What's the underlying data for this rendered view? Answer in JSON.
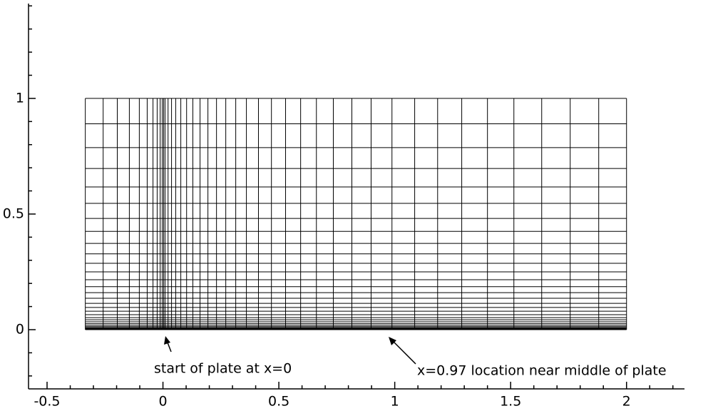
{
  "chart_data": {
    "type": "mesh",
    "xlim": [
      -0.58,
      2.25
    ],
    "ylim": [
      -0.256,
      1.41
    ],
    "xticks": [
      -0.5,
      0,
      0.5,
      1,
      1.5,
      2
    ],
    "yticks": [
      0,
      0.5,
      1
    ],
    "xminorticks": [
      -0.4,
      -0.3,
      -0.2,
      -0.1,
      0.1,
      0.2,
      0.3,
      0.4,
      0.6,
      0.7,
      0.8,
      0.9,
      1.1,
      1.2,
      1.3,
      1.4,
      1.6,
      1.7,
      1.8,
      1.9,
      2.1,
      2.2
    ],
    "yminorticks": [
      -0.2,
      -0.1,
      0.1,
      0.2,
      0.3,
      0.4,
      0.6,
      0.7,
      0.8,
      0.9,
      1.1,
      1.2,
      1.3,
      1.4
    ],
    "mesh_x": [
      -0.335,
      -0.258,
      -0.197,
      -0.145,
      -0.102,
      -0.068,
      -0.043,
      -0.025,
      -0.012,
      -0.003,
      0.003,
      0.009,
      0.022,
      0.037,
      0.055,
      0.077,
      0.102,
      0.129,
      0.16,
      0.194,
      0.231,
      0.271,
      0.314,
      0.36,
      0.412,
      0.468,
      0.529,
      0.594,
      0.662,
      0.735,
      0.815,
      0.898,
      0.988,
      1.086,
      1.185,
      1.289,
      1.4,
      1.514,
      1.634,
      1.757,
      1.88,
      2.0
    ],
    "mesh_y": [
      0,
      0.003,
      0.006,
      0.009,
      0.013,
      0.019,
      0.026,
      0.034,
      0.043,
      0.052,
      0.065,
      0.08,
      0.096,
      0.114,
      0.136,
      0.16,
      0.186,
      0.216,
      0.25,
      0.287,
      0.328,
      0.373,
      0.425,
      0.481,
      0.546,
      0.617,
      0.697,
      0.787,
      0.89,
      1.0
    ],
    "annotations": [
      "start of plate at x=0",
      "x=0.97 location near middle of plate"
    ]
  }
}
